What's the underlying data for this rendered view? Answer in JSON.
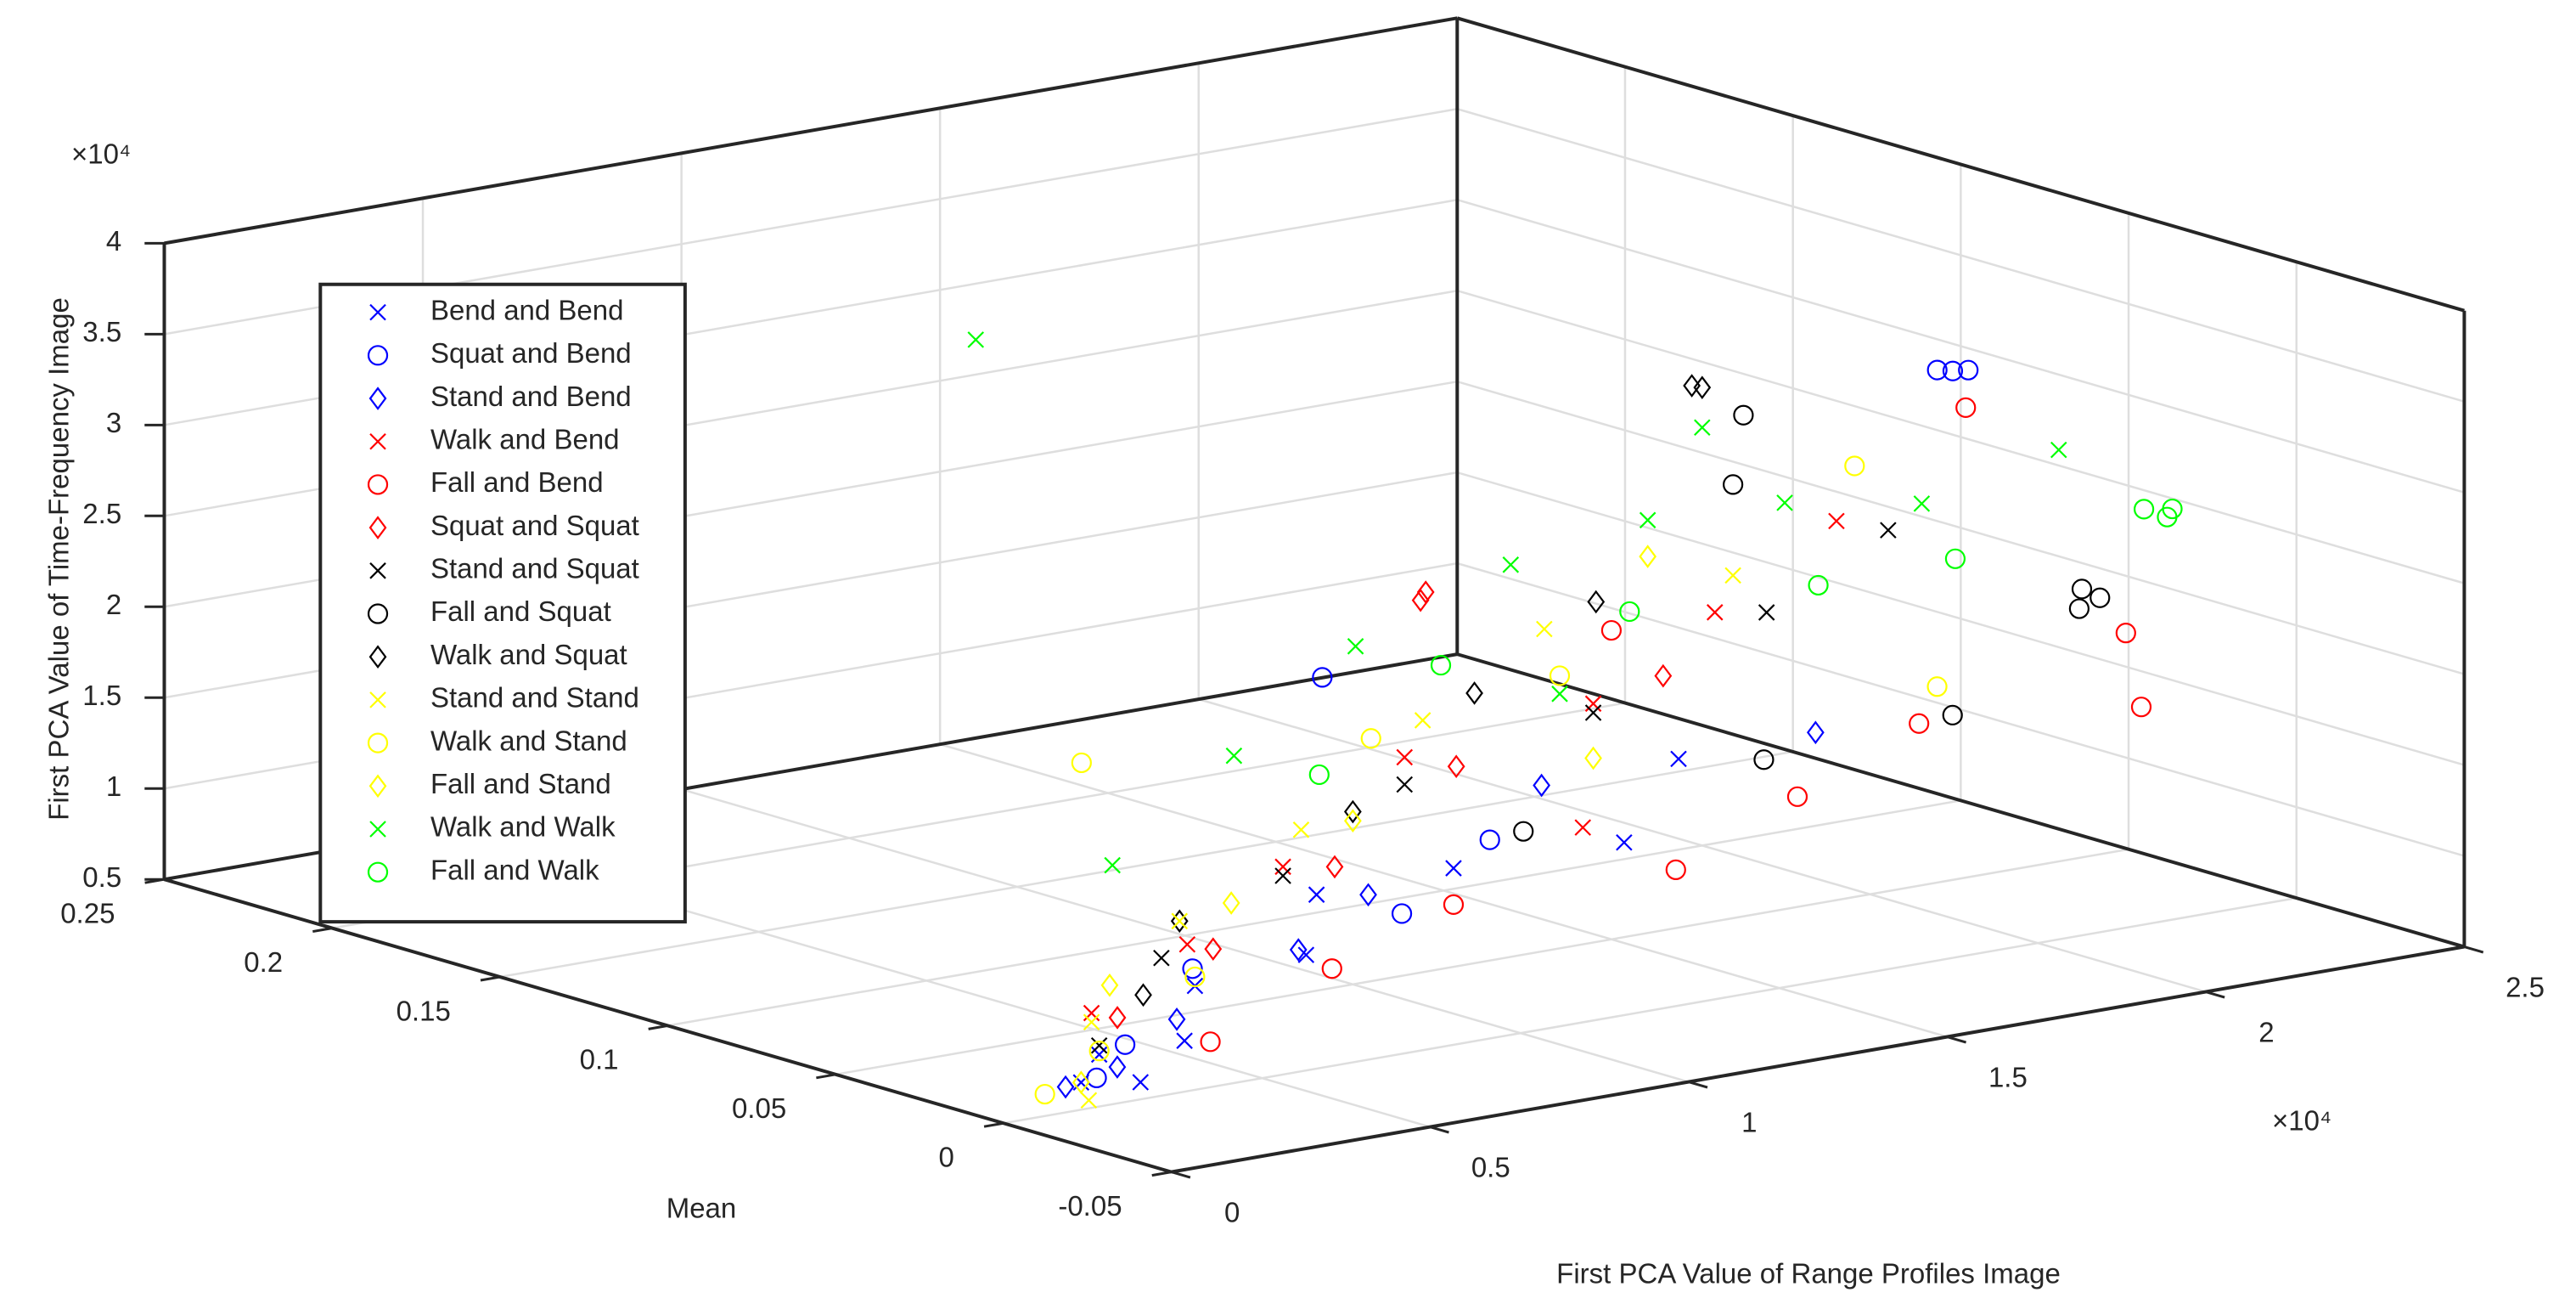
{
  "chart_data": {
    "type": "scatter3d",
    "xlabel": "First PCA Value of Range Profiles Image",
    "ylabel": "Mean",
    "zlabel": "First PCA Value of Time-Frequency Image",
    "x_exponent": "×10⁴",
    "z_exponent": "×10⁴",
    "xlim": [
      0,
      25000
    ],
    "ylim": [
      -0.05,
      0.25
    ],
    "zlim": [
      5000,
      40000
    ],
    "xticks": [
      0,
      {
        "value": 5000,
        "label": "0.5"
      },
      {
        "value": 10000,
        "label": "1"
      },
      {
        "value": 15000,
        "label": "1.5"
      },
      {
        "value": 20000,
        "label": "2"
      },
      {
        "value": 25000,
        "label": "2.5"
      }
    ],
    "yticks": [
      -0.05,
      0,
      0.05,
      0.1,
      0.15,
      0.2,
      0.25
    ],
    "zticks": [
      {
        "value": 5000,
        "label": "0.5"
      },
      {
        "value": 10000,
        "label": "1"
      },
      {
        "value": 15000,
        "label": "1.5"
      },
      {
        "value": 20000,
        "label": "2"
      },
      {
        "value": 25000,
        "label": "2.5"
      },
      {
        "value": 30000,
        "label": "3"
      },
      {
        "value": 35000,
        "label": "3.5"
      },
      {
        "value": 40000,
        "label": "4"
      }
    ],
    "grid": true,
    "legend_position": "upper-left",
    "series": [
      {
        "name": "Bend and Bend",
        "marker": "x",
        "color": "#0000ff",
        "x": [
          1500,
          2500,
          3500,
          5000,
          6500,
          8000,
          10000,
          12000,
          15000,
          2000
        ],
        "y": [
          0.0,
          0.01,
          0.0,
          0.02,
          0.01,
          0.03,
          0.02,
          0.0,
          0.03,
          -0.01
        ],
        "z": [
          6500,
          7000,
          7800,
          9000,
          10500,
          12000,
          13000,
          14500,
          16000,
          6800
        ]
      },
      {
        "name": "Squat and Bend",
        "marker": "o",
        "color": "#0000ff",
        "x": [
          1800,
          3000,
          6900,
          15900,
          21300,
          21600,
          21900,
          9000,
          12000
        ],
        "y": [
          0.0,
          0.01,
          0.05,
          0.15,
          0.05,
          0.05,
          0.05,
          0.02,
          0.04
        ],
        "z": [
          6600,
          7300,
          7400,
          13600,
          33200,
          33000,
          32900,
          11000,
          12500
        ]
      },
      {
        "name": "Stand and Bend",
        "marker": "d",
        "color": "#0000ff",
        "x": [
          1200,
          2200,
          4000,
          7000,
          9000,
          13000,
          17000
        ],
        "y": [
          0.0,
          0.0,
          0.01,
          0.02,
          0.03,
          0.04,
          0.02
        ],
        "z": [
          6400,
          7000,
          8200,
          10000,
          11500,
          15000,
          17000
        ]
      },
      {
        "name": "Walk and Bend",
        "marker": "x",
        "color": "#ff0000",
        "x": [
          3000,
          5500,
          8000,
          11000,
          14000,
          17000,
          20000,
          12500
        ],
        "y": [
          0.02,
          0.03,
          0.04,
          0.05,
          0.04,
          0.05,
          0.06,
          0.02
        ],
        "z": [
          8500,
          10500,
          13000,
          17000,
          19000,
          22000,
          25000,
          14000
        ]
      },
      {
        "name": "Fall and Bend",
        "marker": "o",
        "color": "#ff0000",
        "x": [
          4000,
          7000,
          10000,
          13000,
          16000,
          19000,
          22000,
          23000,
          15000,
          22500
        ],
        "y": [
          0.0,
          0.01,
          0.02,
          0.0,
          0.01,
          0.02,
          0.0,
          0.02,
          0.05,
          0.06
        ],
        "z": [
          7500,
          9500,
          11000,
          12500,
          14500,
          16500,
          17000,
          19500,
          22000,
          30000
        ]
      },
      {
        "name": "Squat and Squat",
        "marker": "d",
        "color": "#ff0000",
        "x": [
          17800,
          17900,
          3500,
          6000,
          9000,
          12000,
          16000
        ],
        "y": [
          0.15,
          0.15,
          0.02,
          0.03,
          0.04,
          0.05,
          0.05
        ],
        "z": [
          16900,
          17300,
          8000,
          10000,
          12500,
          16000,
          19000
        ]
      },
      {
        "name": "Stand and Squat",
        "marker": "x",
        "color": "#000000",
        "x": [
          2500,
          5000,
          8000,
          11000,
          14000,
          18000,
          21000
        ],
        "y": [
          0.01,
          0.03,
          0.04,
          0.05,
          0.04,
          0.05,
          0.06
        ],
        "z": [
          7500,
          10000,
          12500,
          15500,
          18500,
          21500,
          24000
        ]
      },
      {
        "name": "Fall and Squat",
        "marker": "o",
        "color": "#000000",
        "x": [
          20800,
          21200,
          21500,
          16000,
          19000,
          12000,
          18000,
          19500
        ],
        "y": [
          0.0,
          0.0,
          0.01,
          0.02,
          0.01,
          0.03,
          0.06,
          0.08
        ],
        "z": [
          23000,
          23400,
          23200,
          16000,
          17500,
          13500,
          28000,
          30000
        ]
      },
      {
        "name": "Walk and Squat",
        "marker": "d",
        "color": "#000000",
        "x": [
          19800,
          20000,
          6000,
          10000,
          13000,
          16000,
          4000
        ],
        "y": [
          0.1,
          0.1,
          0.04,
          0.05,
          0.06,
          0.07,
          0.02
        ],
        "z": [
          30400,
          30200,
          11000,
          14500,
          19000,
          22000,
          9000
        ]
      },
      {
        "name": "Stand and Stand",
        "marker": "x",
        "color": "#ffff00",
        "x": [
          1000,
          3000,
          6000,
          9000,
          12000,
          15000,
          18000
        ],
        "y": [
          -0.01,
          0.02,
          0.04,
          0.05,
          0.06,
          0.07,
          0.06
        ],
        "z": [
          6300,
          8000,
          11000,
          14000,
          18000,
          21000,
          23000
        ]
      },
      {
        "name": "Walk and Stand",
        "marker": "o",
        "color": "#ffff00",
        "x": [
          800,
          2500,
          5000,
          8000,
          11000,
          14000,
          20000,
          21000
        ],
        "y": [
          0.0,
          0.01,
          0.02,
          0.1,
          0.06,
          0.05,
          0.03,
          0.07
        ],
        "z": [
          6200,
          7200,
          9500,
          15500,
          17500,
          20000,
          17500,
          27000
        ]
      },
      {
        "name": "Fall and Stand",
        "marker": "d",
        "color": "#ffff00",
        "x": [
          1500,
          4000,
          7000,
          10000,
          14000,
          17000
        ],
        "y": [
          0.0,
          0.03,
          0.04,
          0.05,
          0.04,
          0.07
        ],
        "z": [
          6500,
          9000,
          11500,
          14000,
          16000,
          24000
        ]
      },
      {
        "name": "Walk and Walk",
        "marker": "x",
        "color": "#00ff00",
        "x": [
          9200,
          6000,
          9000,
          12000,
          15000,
          17000,
          19000,
          21000,
          23000,
          14000,
          20000
        ],
        "y": [
          0.15,
          0.06,
          0.07,
          0.08,
          0.08,
          0.07,
          0.06,
          0.05,
          0.04,
          0.05,
          0.1
        ],
        "z": [
          35500,
          13000,
          17000,
          21000,
          24000,
          26000,
          26500,
          26000,
          28500,
          19000,
          28000
        ]
      },
      {
        "name": "Fall and Walk",
        "marker": "o",
        "color": "#00ff00",
        "x": [
          22500,
          22600,
          22700,
          10000,
          13000,
          16000,
          19000,
          21000
        ],
        "y": [
          0.0,
          0.0,
          0.01,
          0.06,
          0.07,
          0.06,
          0.05,
          0.04
        ],
        "z": [
          27200,
          27600,
          27000,
          16000,
          20000,
          22000,
          22500,
          23500
        ]
      }
    ]
  }
}
